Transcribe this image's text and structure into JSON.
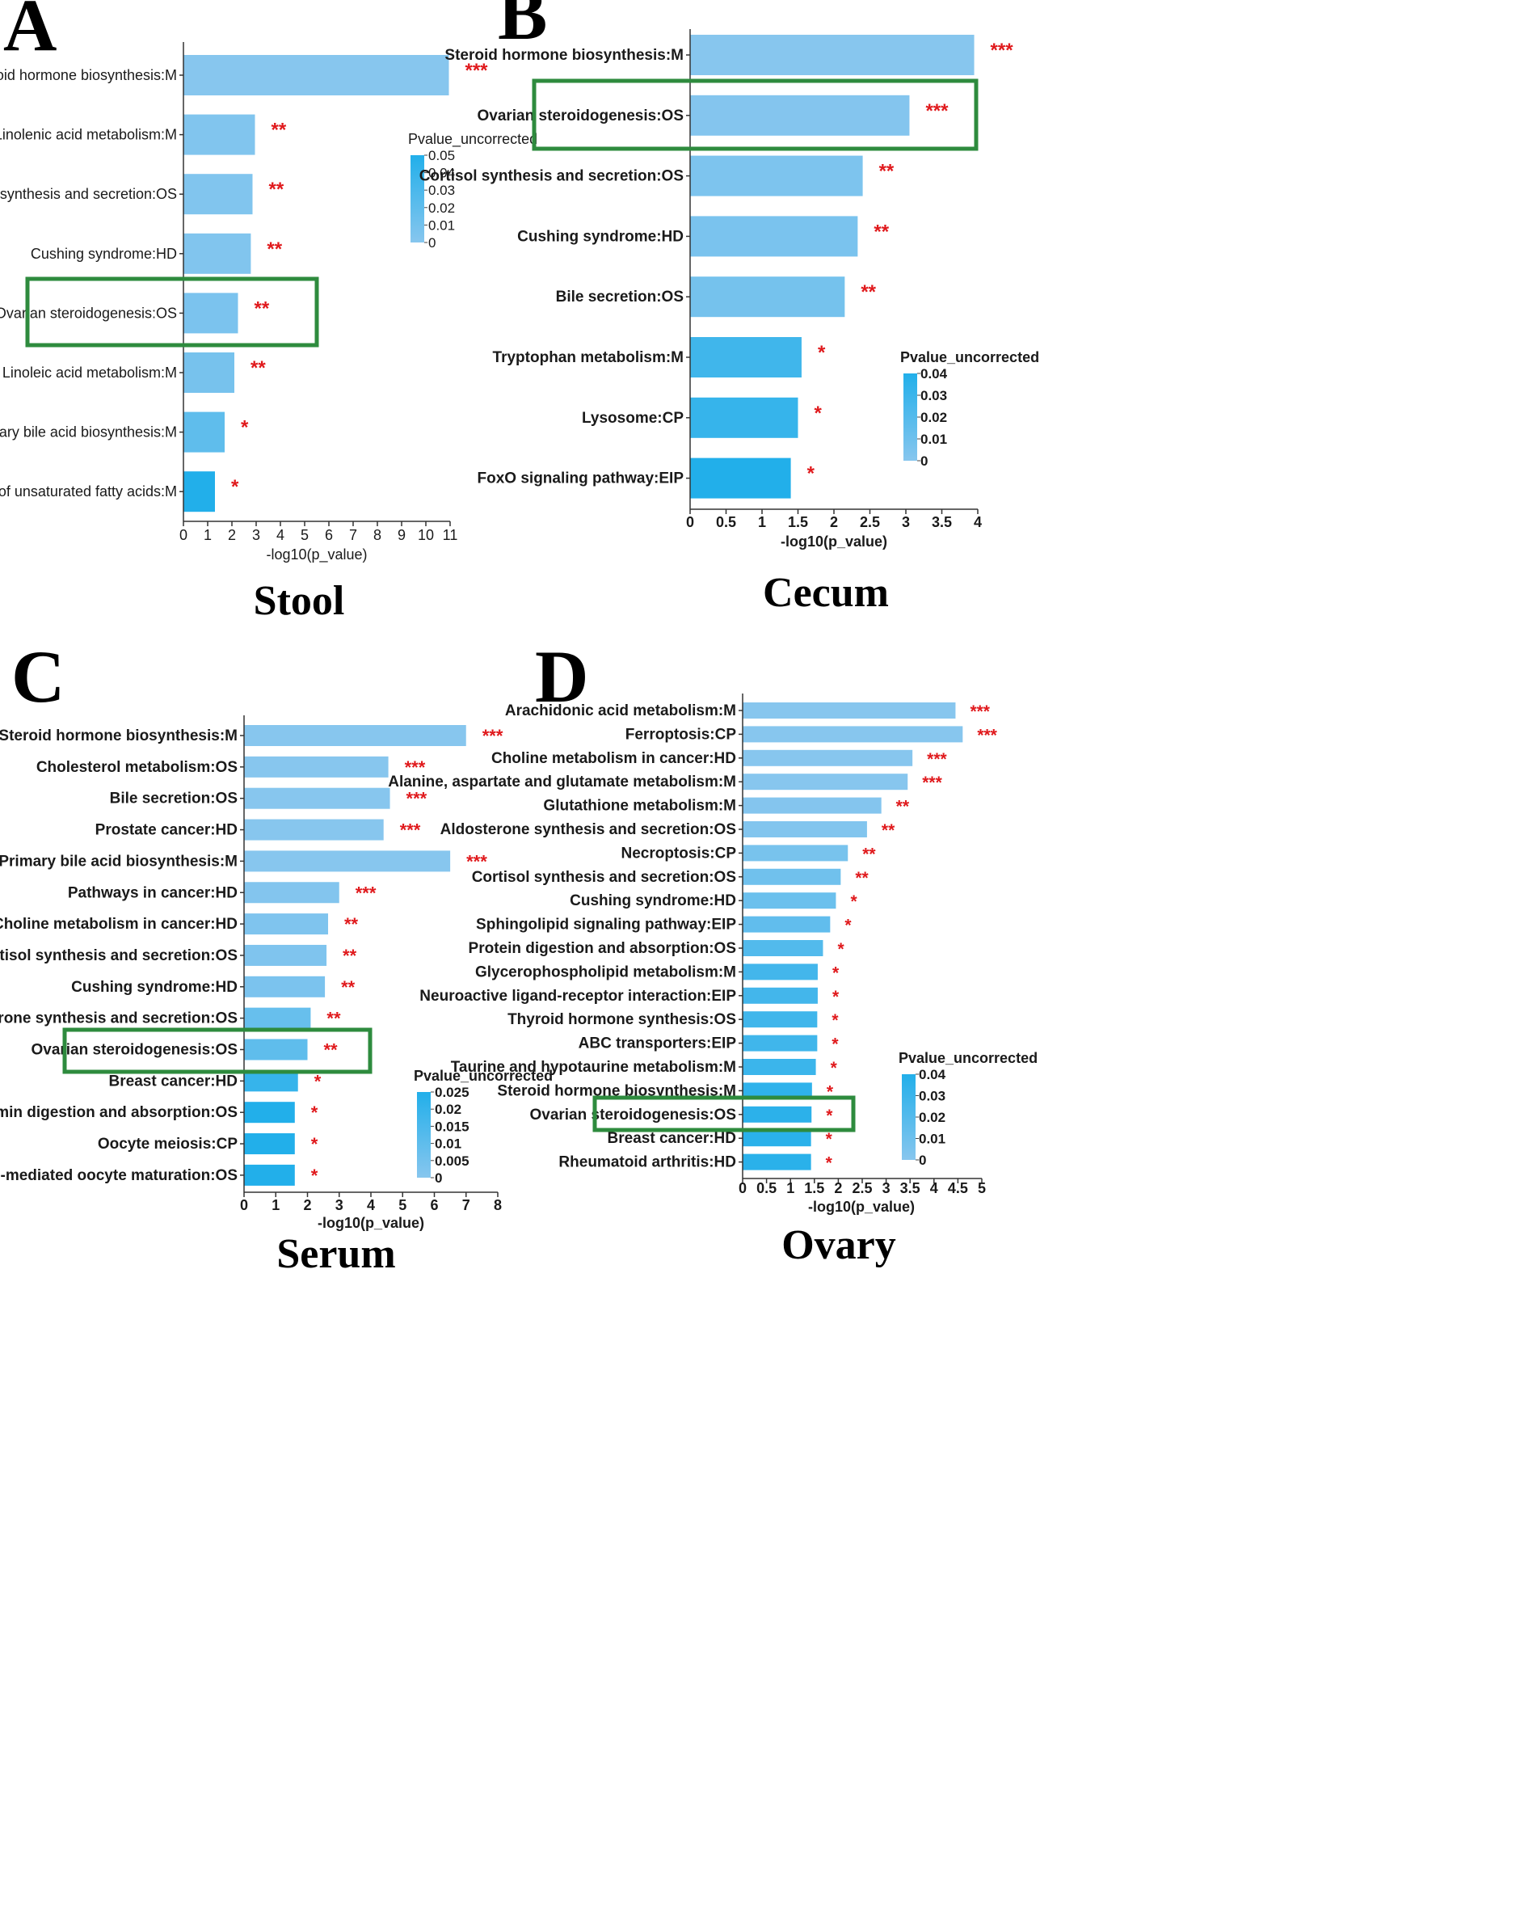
{
  "colors": {
    "bar_low": "#87c6ee",
    "bar_mid": "#5cb8e6",
    "bar_high": "#22afea",
    "star": "#e0191c",
    "highlight_box": "#2e8b3e",
    "axis": "#333333"
  },
  "chart_data": [
    {
      "panel": "A",
      "type": "bar",
      "orientation": "horizontal",
      "title": "Stool",
      "xlabel": "-log10(p_value)",
      "xlim": [
        0,
        11
      ],
      "xticks": [
        0,
        1,
        2,
        3,
        4,
        5,
        6,
        7,
        8,
        9,
        10,
        11
      ],
      "legend_title": "Pvalue_uncorrected",
      "legend_ticks": [
        "0.05",
        "0.04",
        "0.03",
        "0.02",
        "0.01",
        "0"
      ],
      "highlighted": "Ovarian steroidogenesis:OS",
      "categories": [
        "Steroid hormone biosynthesis:M",
        "alpha-Linolenic acid metabolism:M",
        "Cortisol synthesis and secretion:OS",
        "Cushing syndrome:HD",
        "Ovarian steroidogenesis:OS",
        "Linoleic acid metabolism:M",
        "Primary bile acid biosynthesis:M",
        "Biosynthesis of unsaturated fatty acids:M"
      ],
      "values": [
        10.95,
        2.95,
        2.85,
        2.78,
        2.25,
        2.1,
        1.7,
        1.3
      ],
      "significance": [
        "***",
        "**",
        "**",
        "**",
        "**",
        "**",
        "*",
        "*"
      ],
      "color_levels": [
        0.0,
        0.003,
        0.003,
        0.003,
        0.006,
        0.008,
        0.02,
        0.05
      ]
    },
    {
      "panel": "B",
      "type": "bar",
      "orientation": "horizontal",
      "title": "Cecum",
      "xlabel": "-log10(p_value)",
      "xlim": [
        0,
        4
      ],
      "xticks": [
        0,
        0.5,
        1,
        1.5,
        2,
        2.5,
        3,
        3.5,
        4
      ],
      "legend_title": "Pvalue_uncorrected",
      "legend_ticks": [
        "0.04",
        "0.03",
        "0.02",
        "0.01",
        "0"
      ],
      "highlighted": "Ovarian steroidogenesis:OS",
      "categories": [
        "Steroid hormone biosynthesis:M",
        "Ovarian steroidogenesis:OS",
        "Cortisol synthesis and secretion:OS",
        "Cushing syndrome:HD",
        "Bile secretion:OS",
        "Tryptophan metabolism:M",
        "Lysosome:CP",
        "FoxO signaling pathway:EIP"
      ],
      "values": [
        3.95,
        3.05,
        2.4,
        2.33,
        2.15,
        1.55,
        1.5,
        1.4
      ],
      "significance": [
        "***",
        "***",
        "**",
        "**",
        "**",
        "*",
        "*",
        "*"
      ],
      "color_levels": [
        0.0,
        0.001,
        0.004,
        0.005,
        0.007,
        0.028,
        0.032,
        0.04
      ]
    },
    {
      "panel": "C",
      "type": "bar",
      "orientation": "horizontal",
      "title": "Serum",
      "xlabel": "-log10(p_value)",
      "xlim": [
        0,
        8
      ],
      "xticks": [
        0,
        1,
        2,
        3,
        4,
        5,
        6,
        7,
        8
      ],
      "legend_title": "Pvalue_uncorrected",
      "legend_ticks": [
        "0.025",
        "0.02",
        "0.015",
        "0.01",
        "0.005",
        "0"
      ],
      "highlighted": "Ovarian steroidogenesis:OS",
      "categories": [
        "Steroid hormone biosynthesis:M",
        "Cholesterol metabolism:OS",
        "Bile secretion:OS",
        "Prostate cancer:HD",
        "Primary bile acid biosynthesis:M",
        "Pathways in cancer:HD",
        "Choline metabolism in cancer:HD",
        "Cortisol synthesis and secretion:OS",
        "Cushing syndrome:HD",
        "Aldosterone synthesis and secretion:OS",
        "Ovarian steroidogenesis:OS",
        "Breast cancer:HD",
        "Vitamin digestion and absorption:OS",
        "Oocyte meiosis:CP",
        "Progesterone-mediated oocyte maturation:OS"
      ],
      "values": [
        7.0,
        4.55,
        4.6,
        4.4,
        6.5,
        3.0,
        2.65,
        2.6,
        2.55,
        2.1,
        2.0,
        1.7,
        1.6,
        1.6,
        1.6
      ],
      "significance": [
        "***",
        "***",
        "***",
        "***",
        "***",
        "***",
        "**",
        "**",
        "**",
        "**",
        "**",
        "*",
        "*",
        "*",
        "*"
      ],
      "color_levels": [
        0.0,
        0.0,
        0.0,
        0.0,
        0.0,
        0.001,
        0.002,
        0.002,
        0.003,
        0.008,
        0.01,
        0.02,
        0.025,
        0.025,
        0.025
      ]
    },
    {
      "panel": "D",
      "type": "bar",
      "orientation": "horizontal",
      "title": "Ovary",
      "xlabel": "-log10(p_value)",
      "xlim": [
        0,
        5
      ],
      "xticks": [
        0,
        0.5,
        1,
        1.5,
        2,
        2.5,
        3,
        3.5,
        4,
        4.5,
        5
      ],
      "legend_title": "Pvalue_uncorrected",
      "legend_ticks": [
        "0.04",
        "0.03",
        "0.02",
        "0.01",
        "0"
      ],
      "highlighted": "Ovarian steroidogenesis:OS",
      "categories": [
        "Arachidonic acid metabolism:M",
        "Ferroptosis:CP",
        "Choline metabolism in cancer:HD",
        "Alanine, aspartate and glutamate metabolism:M",
        "Glutathione metabolism:M",
        "Aldosterone synthesis and secretion:OS",
        "Necroptosis:CP",
        "Cortisol synthesis and secretion:OS",
        "Cushing syndrome:HD",
        "Sphingolipid signaling pathway:EIP",
        "Protein digestion and absorption:OS",
        "Glycerophospholipid metabolism:M",
        "Neuroactive ligand-receptor interaction:EIP",
        "Thyroid hormone synthesis:OS",
        "ABC transporters:EIP",
        "Taurine and hypotaurine metabolism:M",
        "Steroid hormone biosynthesis:M",
        "Ovarian steroidogenesis:OS",
        "Breast cancer:HD",
        "Rheumatoid arthritis:HD"
      ],
      "values": [
        4.45,
        4.6,
        3.55,
        3.45,
        2.9,
        2.6,
        2.2,
        2.05,
        1.95,
        1.83,
        1.68,
        1.57,
        1.57,
        1.56,
        1.56,
        1.53,
        1.45,
        1.44,
        1.43,
        1.43
      ],
      "significance": [
        "***",
        "***",
        "***",
        "***",
        "**",
        "**",
        "**",
        "**",
        "*",
        "*",
        "*",
        "*",
        "*",
        "*",
        "*",
        "*",
        "*",
        "*",
        "*",
        "*"
      ],
      "color_levels": [
        0.0,
        0.0,
        0.0,
        0.0,
        0.001,
        0.002,
        0.006,
        0.009,
        0.011,
        0.015,
        0.021,
        0.027,
        0.027,
        0.028,
        0.028,
        0.03,
        0.035,
        0.036,
        0.037,
        0.037
      ]
    }
  ]
}
